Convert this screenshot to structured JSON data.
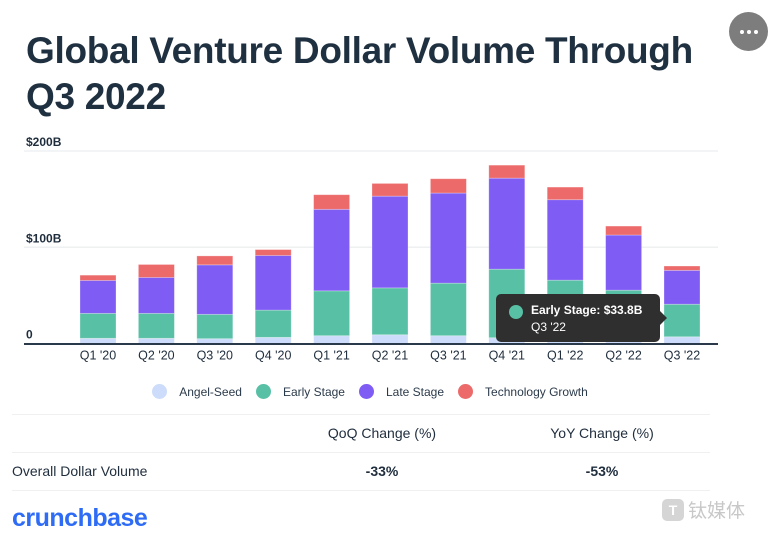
{
  "header": {
    "title": "Global Venture Dollar Volume Through Q3 2022",
    "more_button_icon": "more-horizontal-icon"
  },
  "chart_data": {
    "type": "bar",
    "stacked": true,
    "title": "Global Venture Dollar Volume Through Q3 2022",
    "xlabel": "",
    "ylabel": "",
    "ylim": [
      0,
      200
    ],
    "yticks": [
      0,
      100,
      200
    ],
    "ytick_labels": [
      "0",
      "$100B",
      "$200B"
    ],
    "grid": true,
    "legend_position": "bottom",
    "categories": [
      "Q1 '20",
      "Q2 '20",
      "Q3 '20",
      "Q4 '20",
      "Q1 '21",
      "Q2 '21",
      "Q3 '21",
      "Q4 '21",
      "Q1 '22",
      "Q2 '22",
      "Q3 '22"
    ],
    "series": [
      {
        "name": "Angel-Seed",
        "color": "#cddcfa",
        "values": [
          5.4,
          5.4,
          5.0,
          6.4,
          8.1,
          9.1,
          8.1,
          6.0,
          6.8,
          6.4,
          7.0
        ]
      },
      {
        "name": "Early Stage",
        "color": "#58c0a5",
        "values": [
          25.9,
          25.9,
          25.3,
          28.3,
          46.6,
          48.7,
          54.6,
          71.2,
          59.0,
          49.0,
          33.8
        ]
      },
      {
        "name": "Late Stage",
        "color": "#7f5cf3",
        "values": [
          34.2,
          37.3,
          51.4,
          56.7,
          84.7,
          95.3,
          93.6,
          94.6,
          83.6,
          57.3,
          35.2
        ]
      },
      {
        "name": "Technology Growth",
        "color": "#ec6a6a",
        "values": [
          5.5,
          13.5,
          9.3,
          6.2,
          15.2,
          13.2,
          14.9,
          13.5,
          13.1,
          9.3,
          4.5
        ]
      }
    ],
    "tooltip": {
      "series": "Early Stage",
      "category": "Q3 '22",
      "line1": "Early Stage: $33.8B",
      "line2": "Q3 '22",
      "color": "#58c0a5"
    }
  },
  "table": {
    "headers": [
      "",
      "QoQ Change (%)",
      "YoY Change (%)"
    ],
    "rows": [
      {
        "label": "Overall Dollar Volume",
        "qoq": "-33%",
        "yoy": "-53%"
      }
    ]
  },
  "footer": {
    "brand": "crunchbase",
    "brand_color": "#2e6cf6",
    "watermark_icon": "T",
    "watermark_text": "钛媒体"
  }
}
